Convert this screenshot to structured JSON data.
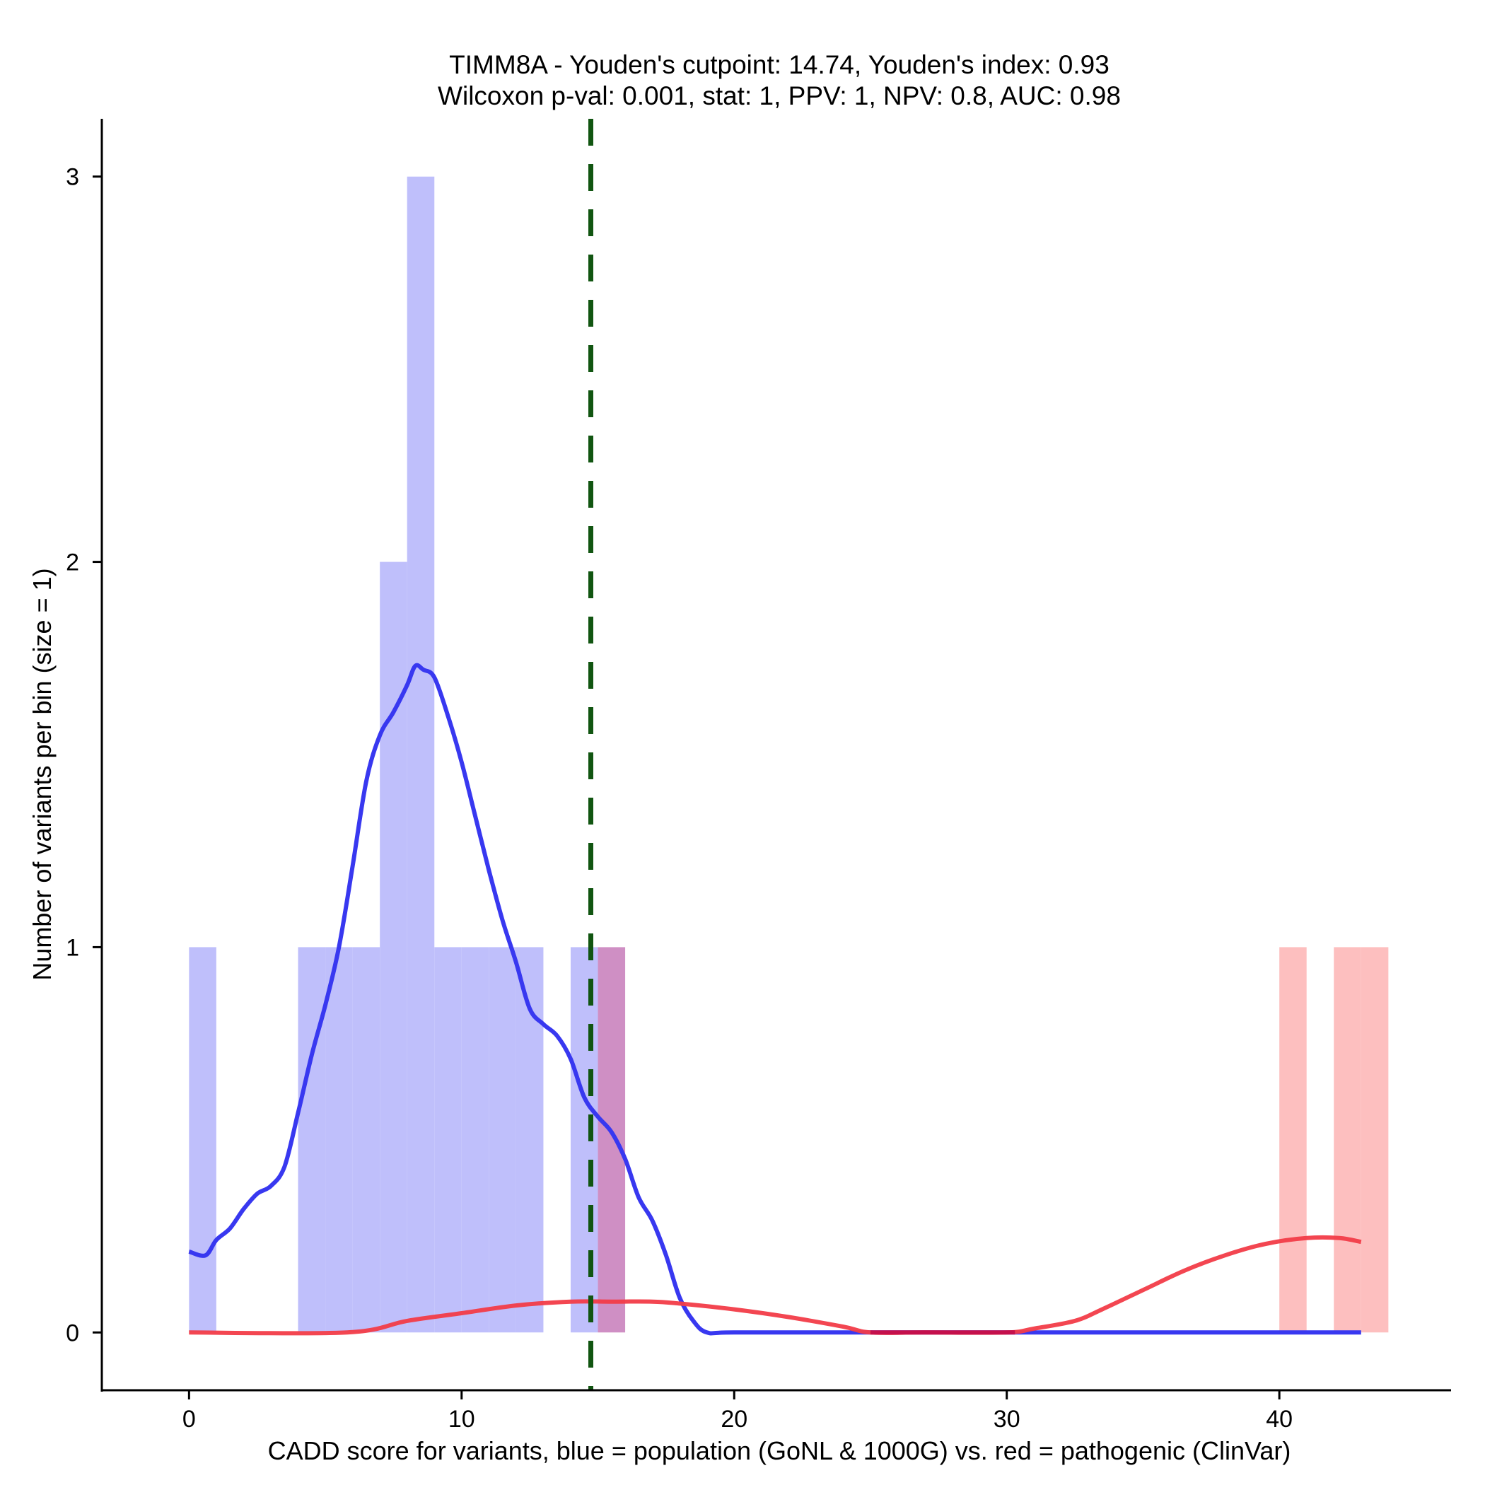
{
  "chart_data": {
    "type": "histogram",
    "title_line1": "TIMM8A - Youden's cutpoint: 14.74, Youden's index: 0.93",
    "title_line2": "Wilcoxon p-val: 0.001, stat: 1, PPV: 1, NPV: 0.8, AUC: 0.98",
    "xlabel": "CADD score for variants, blue = population (GoNL & 1000G) vs. red = pathogenic (ClinVar)",
    "ylabel": "Number of variants per bin (size = 1)",
    "xlim": [
      -3.2,
      46.3
    ],
    "ylim": [
      -0.15,
      3.15
    ],
    "x_ticks": [
      0,
      10,
      20,
      30,
      40
    ],
    "x_tick_labels": [
      "0",
      "10",
      "20",
      "30",
      "40"
    ],
    "y_ticks": [
      0,
      1,
      2,
      3
    ],
    "y_tick_labels": [
      "0",
      "1",
      "2",
      "3"
    ],
    "cutpoint": 14.74,
    "colors": {
      "population_bar": "#bfbffb",
      "pathogenic_bar": "#fdbfbf",
      "overlap_bar": "#cf8fc4",
      "population_line": "#3838f0",
      "pathogenic_line": "#f23c48",
      "cutpoint_line": "#115511",
      "density_overlap": "#c4104c"
    },
    "series": [
      {
        "name": "population (GoNL & 1000G)",
        "bins": [
          {
            "x0": 0,
            "x1": 1,
            "count": 1
          },
          {
            "x0": 4,
            "x1": 5,
            "count": 1
          },
          {
            "x0": 5,
            "x1": 6,
            "count": 1
          },
          {
            "x0": 6,
            "x1": 7,
            "count": 1
          },
          {
            "x0": 7,
            "x1": 8,
            "count": 2
          },
          {
            "x0": 8,
            "x1": 9,
            "count": 3
          },
          {
            "x0": 9,
            "x1": 10,
            "count": 1
          },
          {
            "x0": 10,
            "x1": 11,
            "count": 1
          },
          {
            "x0": 11,
            "x1": 12,
            "count": 1
          },
          {
            "x0": 12,
            "x1": 13,
            "count": 1
          },
          {
            "x0": 14,
            "x1": 15,
            "count": 1
          }
        ],
        "density": [
          [
            0,
            0.21
          ],
          [
            0.6,
            0.2
          ],
          [
            1,
            0.24
          ],
          [
            1.5,
            0.27
          ],
          [
            2,
            0.32
          ],
          [
            2.5,
            0.36
          ],
          [
            3,
            0.38
          ],
          [
            3.5,
            0.43
          ],
          [
            4,
            0.57
          ],
          [
            4.5,
            0.72
          ],
          [
            5,
            0.85
          ],
          [
            5.5,
            1.0
          ],
          [
            6,
            1.21
          ],
          [
            6.5,
            1.43
          ],
          [
            7,
            1.55
          ],
          [
            7.5,
            1.61
          ],
          [
            8,
            1.68
          ],
          [
            8.3,
            1.73
          ],
          [
            8.6,
            1.72
          ],
          [
            9,
            1.7
          ],
          [
            9.5,
            1.6
          ],
          [
            10,
            1.48
          ],
          [
            10.5,
            1.34
          ],
          [
            11,
            1.2
          ],
          [
            11.5,
            1.07
          ],
          [
            12,
            0.96
          ],
          [
            12.5,
            0.84
          ],
          [
            13,
            0.8
          ],
          [
            13.5,
            0.77
          ],
          [
            14,
            0.71
          ],
          [
            14.5,
            0.61
          ],
          [
            15,
            0.56
          ],
          [
            15.5,
            0.52
          ],
          [
            16,
            0.45
          ],
          [
            16.5,
            0.35
          ],
          [
            17,
            0.29
          ],
          [
            17.5,
            0.2
          ],
          [
            18,
            0.09
          ],
          [
            18.5,
            0.03
          ],
          [
            19,
            0.0
          ],
          [
            20,
            0.0
          ],
          [
            25,
            0.0
          ],
          [
            30,
            0.0
          ],
          [
            35,
            0.0
          ],
          [
            40,
            0.0
          ],
          [
            43,
            0.0
          ]
        ]
      },
      {
        "name": "pathogenic (ClinVar)",
        "bins": [
          {
            "x0": 15,
            "x1": 16,
            "count": 1
          },
          {
            "x0": 40,
            "x1": 41,
            "count": 1
          },
          {
            "x0": 42,
            "x1": 43,
            "count": 1
          },
          {
            "x0": 43,
            "x1": 44,
            "count": 1
          }
        ],
        "density": [
          [
            0,
            0.0
          ],
          [
            5.8,
            0.0
          ],
          [
            8,
            0.03
          ],
          [
            10,
            0.05
          ],
          [
            12,
            0.07
          ],
          [
            14,
            0.08
          ],
          [
            15.5,
            0.08
          ],
          [
            17,
            0.08
          ],
          [
            18,
            0.075
          ],
          [
            20,
            0.06
          ],
          [
            22,
            0.04
          ],
          [
            24,
            0.015
          ],
          [
            25,
            0.0
          ],
          [
            27,
            0.0
          ],
          [
            30,
            0.0
          ],
          [
            31,
            0.01
          ],
          [
            32.5,
            0.03
          ],
          [
            33.5,
            0.06
          ],
          [
            35,
            0.11
          ],
          [
            36.5,
            0.16
          ],
          [
            38,
            0.2
          ],
          [
            39.5,
            0.23
          ],
          [
            41,
            0.245
          ],
          [
            42.2,
            0.245
          ],
          [
            43,
            0.235
          ]
        ]
      }
    ]
  }
}
